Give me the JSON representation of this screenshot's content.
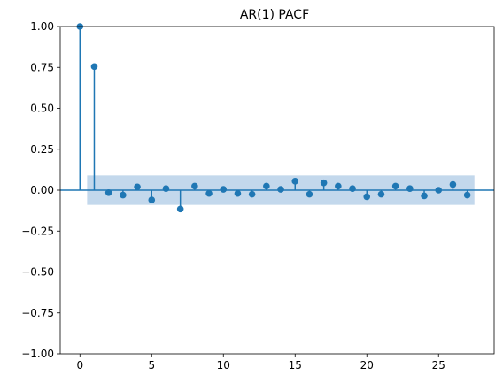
{
  "chart_data": {
    "type": "stem",
    "title": "AR(1) PACF",
    "xlabel": "",
    "ylabel": "",
    "xlim": [
      -1.375,
      28.875
    ],
    "ylim": [
      -1.0,
      1.0
    ],
    "x_ticks": [
      0,
      5,
      10,
      15,
      20,
      25
    ],
    "y_ticks": [
      -1.0,
      -0.75,
      -0.5,
      -0.25,
      0.0,
      0.25,
      0.5,
      0.75,
      1.0
    ],
    "y_tick_labels": [
      "−1.00",
      "−0.75",
      "−0.50",
      "−0.25",
      "0.00",
      "0.25",
      "0.50",
      "0.75",
      "1.00"
    ],
    "x": [
      0,
      1,
      2,
      3,
      4,
      5,
      6,
      7,
      8,
      9,
      10,
      11,
      12,
      13,
      14,
      15,
      16,
      17,
      18,
      19,
      20,
      21,
      22,
      23,
      24,
      25,
      26,
      27
    ],
    "values": [
      1.0,
      0.755,
      -0.015,
      -0.03,
      0.02,
      -0.06,
      0.01,
      -0.115,
      0.025,
      -0.02,
      0.005,
      -0.02,
      -0.025,
      0.025,
      0.005,
      0.055,
      -0.025,
      0.045,
      0.025,
      0.01,
      -0.04,
      -0.025,
      0.025,
      0.01,
      -0.035,
      0.0,
      0.035,
      -0.03
    ],
    "confidence_band": {
      "x_range": [
        0.5,
        27.5
      ],
      "lower": -0.09,
      "upper": 0.09
    },
    "grid": false,
    "colors": {
      "stem": "#1f77b4",
      "band": "#c3d8ec",
      "zero_line": "#1f77b4",
      "axes": "#000000"
    }
  }
}
